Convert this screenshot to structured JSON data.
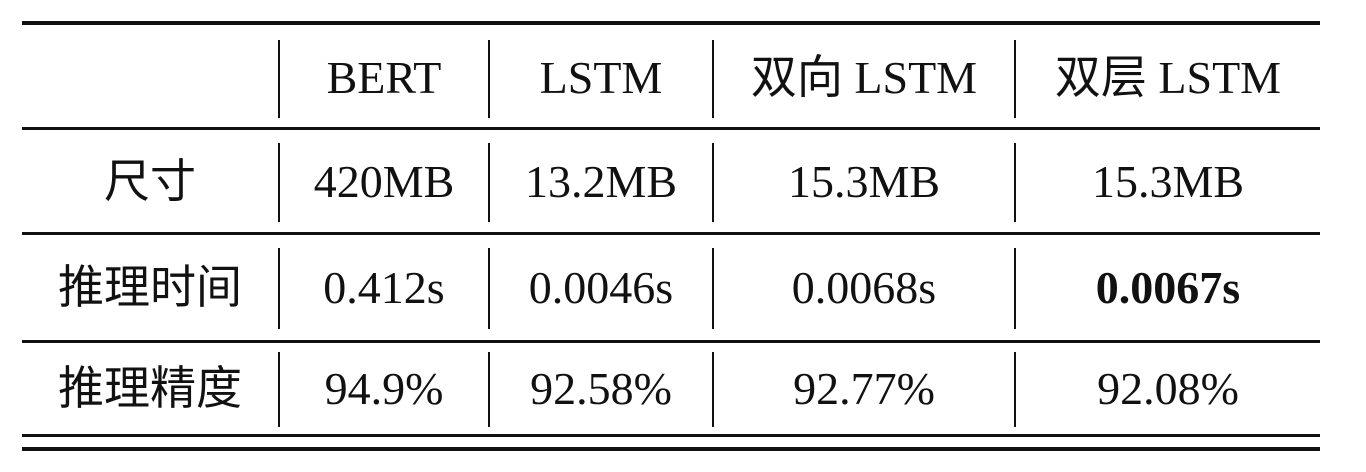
{
  "table": {
    "headers": [
      "",
      "BERT",
      "LSTM",
      "双向 LSTM",
      "双层 LSTM"
    ],
    "rows": [
      {
        "label": "尺寸",
        "values": [
          "420MB",
          "13.2MB",
          "15.3MB",
          "15.3MB"
        ]
      },
      {
        "label": "推理时间",
        "values": [
          "0.412s",
          "0.0046s",
          "0.0068s",
          "0.0067s"
        ]
      },
      {
        "label": "推理精度",
        "values": [
          "94.9%",
          "92.58%",
          "92.77%",
          "92.08%"
        ]
      }
    ],
    "bold_cells": [
      [
        1,
        3
      ]
    ]
  }
}
